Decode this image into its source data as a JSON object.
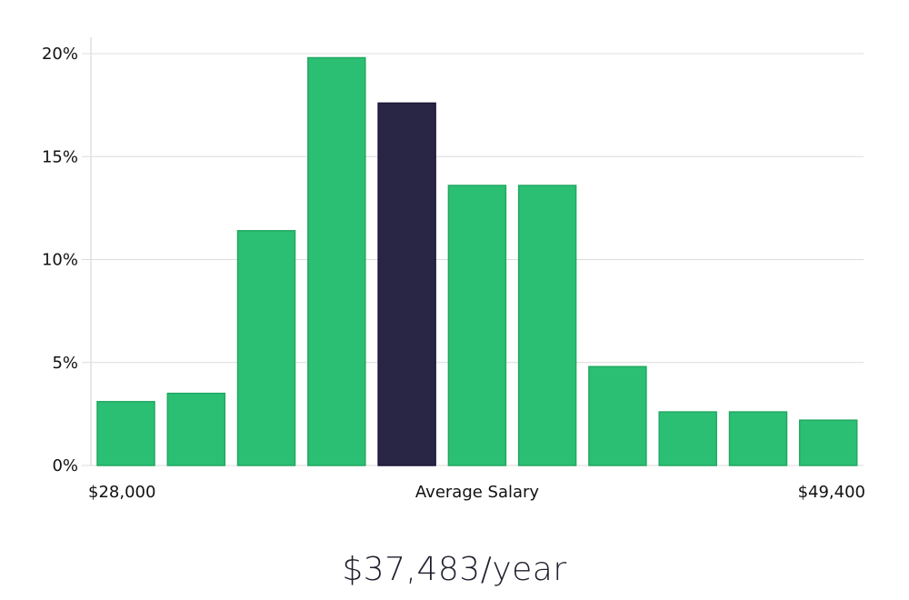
{
  "chart_data": {
    "type": "bar",
    "values": [
      3.1,
      3.5,
      11.4,
      19.8,
      17.6,
      13.6,
      13.6,
      4.8,
      2.6,
      2.6,
      2.2
    ],
    "highlight_index": 4,
    "ylim": [
      0,
      20
    ],
    "y_ticks": [
      0,
      5,
      10,
      15,
      20
    ],
    "y_tick_labels": [
      "0%",
      "5%",
      "10%",
      "15%",
      "20%"
    ],
    "x_min_label": "$28,000",
    "x_center_label": "Average Salary",
    "x_max_label": "$49,400",
    "grid": true,
    "colors": {
      "bar": "#2bbf74",
      "bar_stroke": "#22a862",
      "highlight": "#282545",
      "highlight_stroke": "#1a1838"
    }
  },
  "summary": {
    "average_salary": "$37,483/year"
  }
}
